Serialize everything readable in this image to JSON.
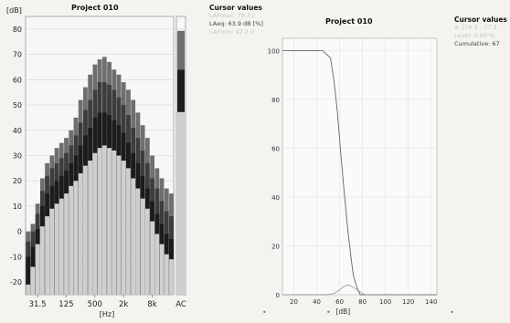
{
  "left_chart": {
    "title": "Project 010",
    "unit_label": "[dB]",
    "x_unit_label": "[Hz]",
    "y_ticks": [
      "80",
      "70",
      "60",
      "50",
      "40",
      "30",
      "20",
      "10",
      "0",
      "-10",
      "-20"
    ],
    "x_ticks": [
      "31.5",
      "125",
      "500",
      "2k",
      "8k"
    ],
    "ac_label": "AC"
  },
  "cursor_values_1": {
    "heading": "Cursor values",
    "lines": [
      "LAFmax: 79.3 (",
      "LAeq: 63.9 dB [%]",
      "LAFmin: 47.2 d"
    ]
  },
  "right_chart": {
    "title": "Project 010",
    "x_unit_label": "[dB]",
    "y_ticks": [
      "100",
      "80",
      "60",
      "40",
      "20",
      "0"
    ],
    "x_ticks": [
      "20",
      "40",
      "60",
      "80",
      "100",
      "120",
      "140"
    ]
  },
  "cursor_values_2": {
    "heading": "Cursor values",
    "lines": [
      "X: [76.3 - 77.3",
      "Level: 0.00 %",
      "Cumulative: 67"
    ]
  },
  "chart_data": [
    {
      "type": "bar",
      "title": "Project 010",
      "xlabel": "[Hz]",
      "ylabel": "[dB]",
      "ylim": [
        -25,
        85
      ],
      "grid": true,
      "x_ticks_shown": [
        "31.5",
        "125",
        "500",
        "2k",
        "8k"
      ],
      "bands_hz": [
        "20",
        "25",
        "31.5",
        "40",
        "50",
        "63",
        "80",
        "100",
        "125",
        "160",
        "200",
        "250",
        "315",
        "400",
        "500",
        "630",
        "800",
        "1k",
        "1.25k",
        "1.6k",
        "2k",
        "2.5k",
        "3.15k",
        "4k",
        "5k",
        "6.3k",
        "8k",
        "10k",
        "12.5k",
        "16k",
        "20k"
      ],
      "series": [
        {
          "values": [
            0,
            3,
            11,
            21,
            27,
            30,
            33,
            35,
            37,
            40,
            45,
            52,
            57,
            62,
            66,
            68,
            69,
            67,
            64,
            62,
            59,
            56,
            52,
            47,
            42,
            37,
            30,
            25,
            21,
            17,
            15
          ]
        },
        {
          "values": [
            -4,
            0,
            7,
            16,
            22,
            25,
            27,
            29,
            31,
            34,
            38,
            43,
            48,
            52,
            56,
            59,
            59,
            58,
            56,
            53,
            50,
            46,
            41,
            37,
            32,
            27,
            21,
            17,
            12,
            8,
            6
          ]
        },
        {
          "values": [
            -10,
            -6,
            1,
            10,
            15,
            18,
            20,
            22,
            24,
            27,
            30,
            34,
            38,
            41,
            45,
            47,
            47,
            46,
            44,
            42,
            39,
            35,
            31,
            27,
            22,
            17,
            12,
            7,
            3,
            -1,
            -3
          ]
        },
        {
          "values": [
            -21,
            -14,
            -5,
            2,
            6,
            9,
            11,
            13,
            15,
            18,
            20,
            23,
            26,
            28,
            31,
            33,
            34,
            33,
            32,
            30,
            28,
            25,
            21,
            17,
            13,
            9,
            4,
            -1,
            -5,
            -9,
            -11
          ]
        }
      ],
      "broadband": {
        "label": "AC",
        "values": [
          79.3,
          63.9,
          47.2
        ]
      }
    },
    {
      "type": "line",
      "title": "Project 010",
      "xlabel": "[dB]",
      "xlim": [
        10,
        145
      ],
      "ylim": [
        0,
        105
      ],
      "grid": true,
      "series": [
        {
          "name": "",
          "x": [
            10,
            45,
            52,
            55,
            58,
            61,
            64,
            67,
            70,
            72,
            75,
            78,
            145
          ],
          "y": [
            100,
            100,
            97,
            88,
            75,
            58,
            42,
            27,
            15,
            8,
            3,
            0,
            0
          ]
        },
        {
          "name": "",
          "x": [
            10,
            48,
            55,
            60,
            64,
            68,
            72,
            77,
            82,
            145
          ],
          "y": [
            0,
            0,
            0.5,
            2,
            3.5,
            4,
            3,
            1.5,
            0,
            0
          ]
        }
      ]
    }
  ]
}
